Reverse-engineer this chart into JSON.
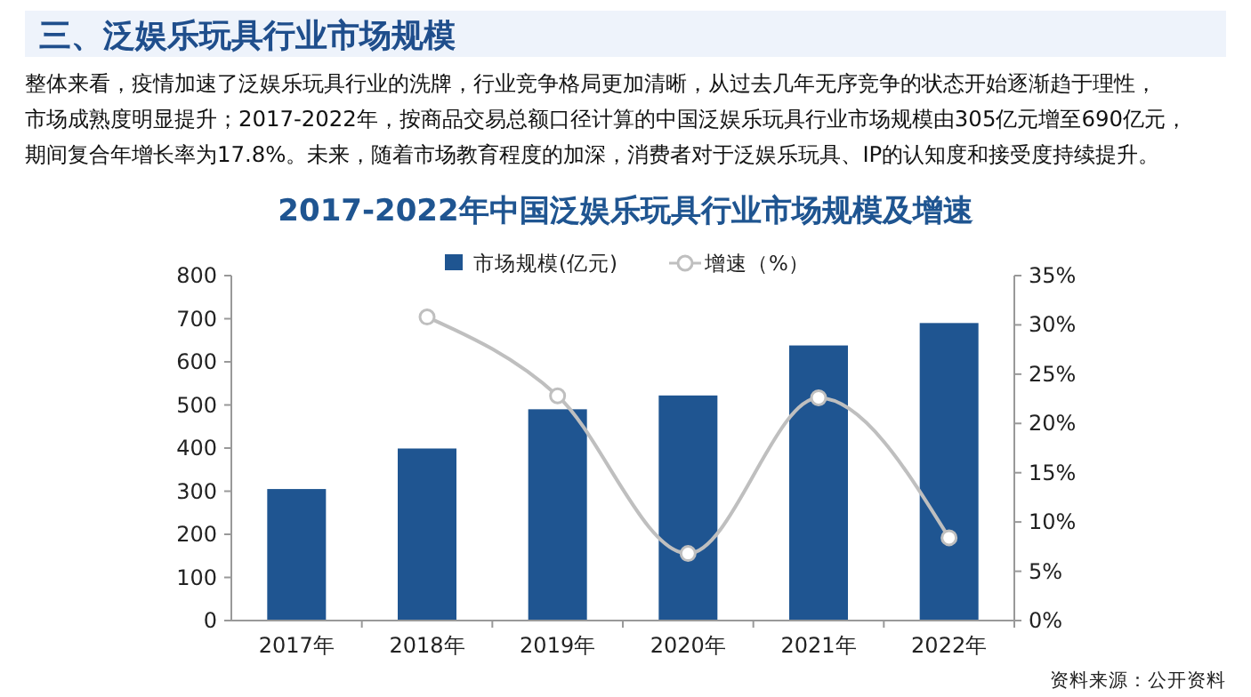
{
  "chart_data": {
    "type": "bar",
    "title": "三、泛娱乐玩具行业市场规模",
    "subtitle": "2017-2022年中国泛娱乐玩具行业市场规模及增速",
    "annotations": [
      "整体来看，疫情加速了泛娱乐玩具行业的洗牌，行业竞争格局更加清晰，从过去几年无序竞争的状态开始逐渐趋于理性，",
      "市场成熟度明显提升；2017-2022年，按商品交易总额口径计算的中国泛娱乐玩具行业市场规模由305亿元增至690亿元，",
      "期间复合年增长率为17.8%。未来，随着市场教育程度的加深，消费者对于泛娱乐玩具、IP的认知度和接受度持续提升。",
      "资料来源：公开资料"
    ],
    "categories": [
      "2017年",
      "2018年",
      "2019年",
      "2020年",
      "2021年",
      "2022年"
    ],
    "series": [
      {
        "name": "市场规模(亿元)",
        "color": "#1f5591",
        "values": [
          305,
          399,
          490,
          522,
          638,
          690
        ]
      },
      {
        "name": "增速（%）",
        "type": "line",
        "axis": "y2",
        "color": "#bfbfbf",
        "marker": "circle",
        "values": [
          null,
          30.8,
          22.8,
          6.8,
          22.6,
          8.4
        ]
      }
    ],
    "ylim": [
      0,
      800
    ],
    "yticks": [
      0,
      100,
      200,
      300,
      400,
      500,
      600,
      700,
      800
    ],
    "y2lim": [
      0,
      35
    ],
    "y2ticks": [
      {
        "value": 0,
        "label": "0%"
      },
      {
        "value": 5,
        "label": "5%"
      },
      {
        "value": 10,
        "label": "10%"
      },
      {
        "value": 15,
        "label": "15%"
      },
      {
        "value": 20,
        "label": "20%"
      },
      {
        "value": 25,
        "label": "25%"
      },
      {
        "value": 30,
        "label": "30%"
      },
      {
        "value": 35,
        "label": "35%"
      }
    ],
    "grid": false,
    "legend": "top"
  }
}
